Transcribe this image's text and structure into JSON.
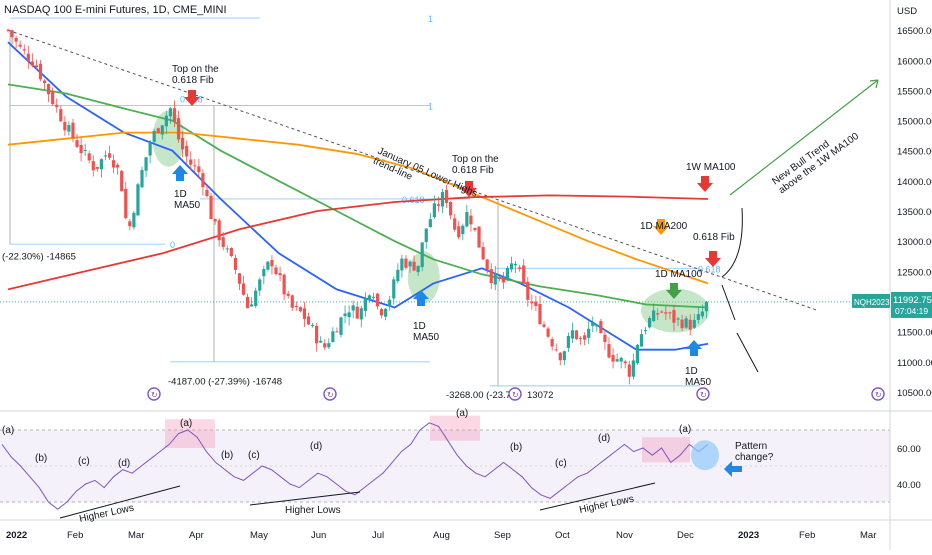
{
  "header": {
    "title": "NASDAQ 100 E-mini Futures, 1D, CME_MINI",
    "currency": "USD"
  },
  "price_tag": {
    "symbol": "NQH2023",
    "price": "11992.75",
    "countdown": "07:04:19"
  },
  "colors": {
    "up": "#26a69a",
    "down": "#ef5350",
    "ma50": "#2962ff",
    "ma200": "#4caf50",
    "w_ma100": "#ff9800",
    "w_ma100_red": "#e53935",
    "rsi": "#7e57c2",
    "tag": "#26a69a"
  },
  "chart_data": [
    {
      "type": "candlestick",
      "title": "NASDAQ 100 E-mini Futures, 1D, CME_MINI",
      "ylim": [
        10200,
        17000
      ],
      "y_ticks": [
        10500,
        11000,
        11500,
        12000,
        12500,
        13000,
        13500,
        14000,
        14500,
        15000,
        15500,
        16000,
        16500
      ],
      "y_tick_labels": [
        "10500.00",
        "11000.00",
        "11500.00",
        "12000.00",
        "12500.00",
        "13000.00",
        "13500.00",
        "14000.00",
        "14500.00",
        "15000.00",
        "15500.00",
        "16000.00",
        "16500.00"
      ],
      "x_labels": [
        "2022",
        "Feb",
        "Mar",
        "Apr",
        "May",
        "Jun",
        "Jul",
        "Aug",
        "Sep",
        "Oct",
        "Nov",
        "Dec",
        "2023",
        "Feb",
        "Mar"
      ],
      "close_path": [
        [
          0,
          16500
        ],
        [
          6,
          16200
        ],
        [
          14,
          15950
        ],
        [
          22,
          15400
        ],
        [
          30,
          14900
        ],
        [
          38,
          14500
        ],
        [
          45,
          14200
        ],
        [
          52,
          14500
        ],
        [
          58,
          14100
        ],
        [
          62,
          13100
        ],
        [
          68,
          14000
        ],
        [
          74,
          14700
        ],
        [
          80,
          15000
        ],
        [
          84,
          15200
        ],
        [
          89,
          14600
        ],
        [
          94,
          14300
        ],
        [
          100,
          14100
        ],
        [
          106,
          13300
        ],
        [
          112,
          12900
        ],
        [
          118,
          12500
        ],
        [
          124,
          11900
        ],
        [
          130,
          12300
        ],
        [
          136,
          12700
        ],
        [
          140,
          12400
        ],
        [
          146,
          11900
        ],
        [
          152,
          11800
        ],
        [
          158,
          11500
        ],
        [
          163,
          11200
        ],
        [
          170,
          11600
        ],
        [
          176,
          11900
        ],
        [
          182,
          11800
        ],
        [
          188,
          12300
        ],
        [
          192,
          11800
        ],
        [
          198,
          12100
        ],
        [
          203,
          12700
        ],
        [
          208,
          12600
        ],
        [
          212,
          12600
        ],
        [
          216,
          13200
        ],
        [
          220,
          13500
        ],
        [
          226,
          13800
        ],
        [
          232,
          13100
        ],
        [
          238,
          13500
        ],
        [
          244,
          12900
        ],
        [
          250,
          12400
        ],
        [
          256,
          12300
        ],
        [
          262,
          12700
        ],
        [
          268,
          12100
        ],
        [
          274,
          11800
        ],
        [
          280,
          11400
        ],
        [
          286,
          11100
        ],
        [
          292,
          11500
        ],
        [
          298,
          11300
        ],
        [
          302,
          11700
        ],
        [
          306,
          11400
        ],
        [
          312,
          11100
        ],
        [
          318,
          11000
        ],
        [
          322,
          10800
        ],
        [
          326,
          11400
        ],
        [
          332,
          11700
        ],
        [
          338,
          11850
        ],
        [
          344,
          11700
        ],
        [
          350,
          11650
        ],
        [
          354,
          11600
        ],
        [
          358,
          11750
        ],
        [
          362,
          12000
        ]
      ],
      "series": [
        {
          "name": "1D MA50",
          "values": [
            [
              0,
              16300
            ],
            [
              30,
              15400
            ],
            [
              60,
              14800
            ],
            [
              85,
              14500
            ],
            [
              110,
              13700
            ],
            [
              140,
              12800
            ],
            [
              170,
              12200
            ],
            [
              200,
              11900
            ],
            [
              220,
              12300
            ],
            [
              245,
              12550
            ],
            [
              265,
              12300
            ],
            [
              290,
              11900
            ],
            [
              310,
              11500
            ],
            [
              325,
              11200
            ],
            [
              345,
              11200
            ],
            [
              362,
              11300
            ]
          ]
        },
        {
          "name": "1D MA200",
          "values": [
            [
              0,
              15600
            ],
            [
              30,
              15450
            ],
            [
              60,
              15200
            ],
            [
              85,
              15000
            ],
            [
              110,
              14500
            ],
            [
              140,
              14000
            ],
            [
              170,
              13500
            ],
            [
              200,
              13000
            ],
            [
              220,
              12700
            ],
            [
              245,
              12450
            ],
            [
              275,
              12250
            ],
            [
              305,
              12100
            ],
            [
              330,
              11950
            ],
            [
              362,
              11900
            ]
          ]
        },
        {
          "name": "1W MA100",
          "values": [
            [
              0,
              14600
            ],
            [
              30,
              14700
            ],
            [
              60,
              14800
            ],
            [
              90,
              14800
            ],
            [
              120,
              14700
            ],
            [
              150,
              14600
            ],
            [
              180,
              14450
            ],
            [
              210,
              14200
            ],
            [
              240,
              13800
            ],
            [
              270,
              13400
            ],
            [
              300,
              13000
            ],
            [
              325,
              12700
            ],
            [
              362,
              12300
            ]
          ]
        },
        {
          "name": "1W MA100 (red)",
          "values": [
            [
              0,
              12200
            ],
            [
              40,
              12500
            ],
            [
              80,
              12800
            ],
            [
              120,
              13200
            ],
            [
              160,
              13500
            ],
            [
              200,
              13650
            ],
            [
              240,
              13730
            ],
            [
              280,
              13760
            ],
            [
              320,
              13740
            ],
            [
              362,
              13700
            ]
          ]
        }
      ]
    },
    {
      "type": "line",
      "title": "RSI",
      "ylim": [
        20,
        80
      ],
      "y_ticks": [
        40,
        60
      ],
      "y_tick_labels": [
        "40.00",
        "60.00"
      ],
      "values": [
        62,
        55,
        50,
        44,
        38,
        30,
        26,
        30,
        36,
        40,
        42,
        38,
        44,
        48,
        46,
        50,
        54,
        58,
        62,
        68,
        70,
        66,
        58,
        52,
        48,
        44,
        42,
        46,
        50,
        48,
        44,
        40,
        38,
        42,
        46,
        44,
        40,
        36,
        34,
        38,
        42,
        46,
        52,
        58,
        62,
        70,
        74,
        72,
        64,
        56,
        50,
        46,
        44,
        48,
        52,
        48,
        44,
        38,
        34,
        32,
        36,
        40,
        44,
        46,
        50,
        54,
        58,
        62,
        58,
        60,
        56,
        60,
        52,
        56,
        62,
        58,
        62
      ]
    }
  ],
  "annotations": {
    "top_fib_1": "Top on the\n0.618 Fib",
    "top_fib_2": "Top on the\n0.618 Fib",
    "ma50_1": "1D\nMA50",
    "ma50_2": "1D\nMA50",
    "ma50_3": "1D\nMA50",
    "trendline": "January 05 Lower Highs\ntrend-line",
    "wma100": "1W MA100",
    "ma200": "1D MA200",
    "ma100": "1D MA100",
    "fib_0618": "0.618 Fib",
    "bull_trend": "New Bull Trend\nabove the 1W MA100",
    "measure_1": "-4187.00 (-27.39%) -16748",
    "measure_2": "-3268.00 (-23.75",
    "measure_2b": "13072",
    "measure_0": "(-22.30%) -14865",
    "fib_one": "1",
    "fib_zero": "0",
    "fib_0618_small": "0.618",
    "rsi_labels": [
      "(a)",
      "(b)",
      "(c)",
      "(d)",
      "(a)",
      "(b)",
      "(c)",
      "(d)",
      "(a)",
      "(b)",
      "(c)",
      "(d)",
      "(a)"
    ],
    "higher_lows": [
      "Higher Lows",
      "Higher Lows",
      "Higher Lows"
    ],
    "pattern_change": "Pattern\nchange?"
  }
}
